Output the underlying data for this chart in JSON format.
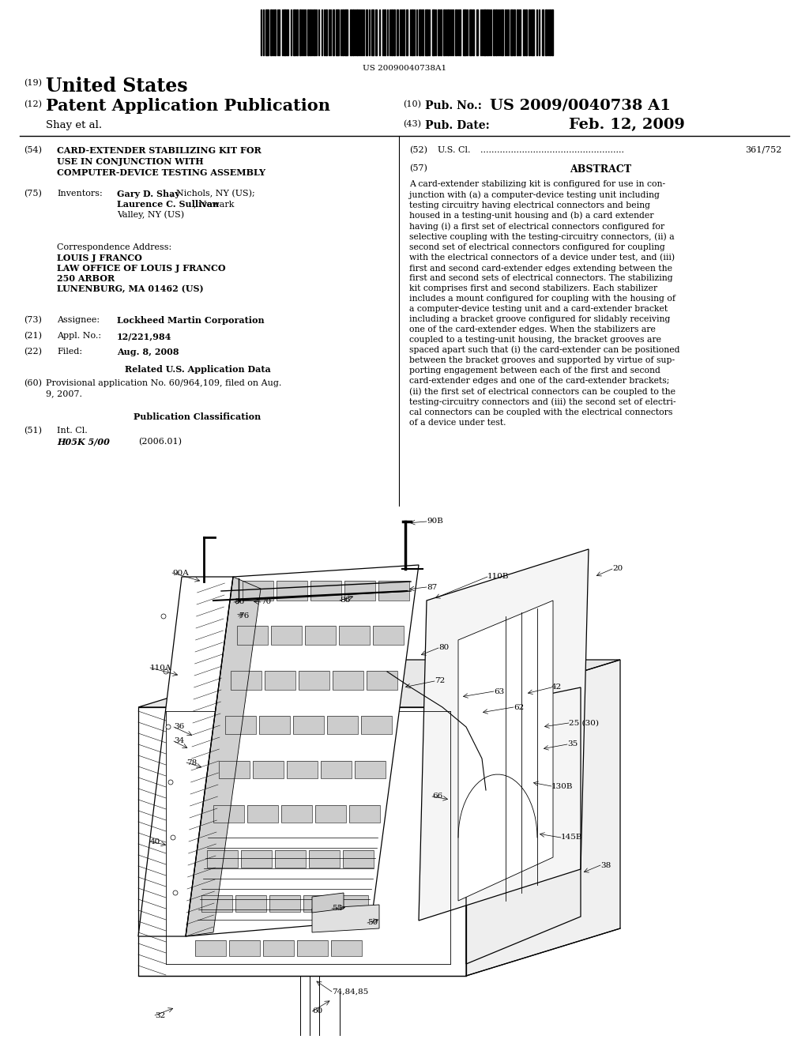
{
  "background_color": "#ffffff",
  "page_width": 10.24,
  "page_height": 13.2,
  "barcode_text": "US 20090040738A1",
  "header": {
    "number_19": "(19)",
    "country": "United States",
    "number_12": "(12)",
    "pub_type": "Patent Application Publication",
    "pub_no_label": "Pub. No.:",
    "pub_no": "US 2009/0040738 A1",
    "inventor": "Shay et al.",
    "number_43": "(43)",
    "pub_date_label": "Pub. Date:",
    "pub_date": "Feb. 12, 2009"
  },
  "left_col": {
    "field_54_title": "CARD-EXTENDER STABILIZING KIT FOR\nUSE IN CONJUNCTION WITH\nCOMPUTER-DEVICE TESTING ASSEMBLY",
    "field_75_value_bold": "Gary D. Shay",
    "field_75_value_plain1": ", Nichols, NY (US);",
    "field_75_value_bold2": "Laurence C. Sullivan",
    "field_75_value_plain2": ", Newark\nValley, NY (US)",
    "corr_label": "Correspondence Address:",
    "corr_name": "LOUIS J FRANCO",
    "corr_law": "LAW OFFICE OF LOUIS J FRANCO",
    "corr_addr1": "250 ARBOR",
    "corr_addr2": "LUNENBURG, MA 01462 (US)",
    "field_73_value": "Lockheed Martin Corporation",
    "field_21_value": "12/221,984",
    "field_22_value": "Aug. 8, 2008",
    "field_60_value": "Provisional application No. 60/964,109, filed on Aug.\n9, 2007.",
    "field_51_class": "H05K 5/00",
    "field_51_year": "(2006.01)"
  },
  "right_col": {
    "field_52_value": "361/752",
    "field_57_text": "A card-extender stabilizing kit is configured for use in con-\njunction with (a) a computer-device testing unit including\ntesting circuitry having electrical connectors and being\nhoused in a testing-unit housing and (b) a card extender\nhaving (i) a first set of electrical connectors configured for\nselective coupling with the testing-circuitry connectors, (ii) a\nsecond set of electrical connectors configured for coupling\nwith the electrical connectors of a device under test, and (iii)\nfirst and second card-extender edges extending between the\nfirst and second sets of electrical connectors. The stabilizing\nkit comprises first and second stabilizers. Each stabilizer\nincludes a mount configured for coupling with the housing of\na computer-device testing unit and a card-extender bracket\nincluding a bracket groove configured for slidably receiving\none of the card-extender edges. When the stabilizers are\ncoupled to a testing-unit housing, the bracket grooves are\nspaced apart such that (i) the card-extender can be positioned\nbetween the bracket grooves and supported by virtue of sup-\nporting engagement between each of the first and second\ncard-extender edges and one of the card-extender brackets;\n(ii) the first set of electrical connectors can be coupled to the\ntesting-circuitry connectors and (iii) the second set of electri-\ncal connectors can be coupled with the electrical connectors\nof a device under test."
  }
}
